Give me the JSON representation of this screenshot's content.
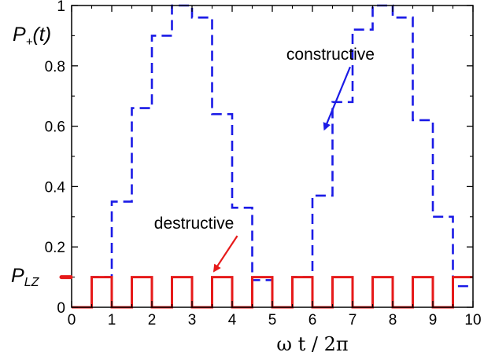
{
  "chart_data": {
    "type": "line",
    "xlabel": "ω t / 2π",
    "ylabel": {
      "main": "P",
      "sub": "+",
      "rest": "(t)"
    },
    "xlim": [
      0,
      10
    ],
    "ylim": [
      0,
      1
    ],
    "xticks": [
      "0",
      "1",
      "2",
      "3",
      "4",
      "5",
      "6",
      "7",
      "8",
      "9",
      "10"
    ],
    "yticks": [
      "0",
      "0.2",
      "0.4",
      "0.6",
      "0.8",
      "1"
    ],
    "plz_marker": {
      "main": "P",
      "sub": "LZ",
      "value": 0.1
    },
    "series": [
      {
        "name": "constructive",
        "style": "dashed",
        "color": "#1a1ae6",
        "x": [
          0,
          0.5,
          0.5,
          1,
          1,
          1.5,
          1.5,
          2,
          2,
          2.5,
          2.5,
          3,
          3,
          3.5,
          3.5,
          4,
          4,
          4.5,
          4.5,
          5,
          5,
          5.5,
          5.5,
          6,
          6,
          6.5,
          6.5,
          7,
          7,
          7.5,
          7.5,
          8,
          8,
          8.5,
          8.5,
          9,
          9,
          9.5,
          9.5,
          10
        ],
        "y": [
          0,
          0,
          0.1,
          0.1,
          0.35,
          0.35,
          0.66,
          0.66,
          0.9,
          0.9,
          1.0,
          1.0,
          0.96,
          0.96,
          0.64,
          0.64,
          0.33,
          0.33,
          0.09,
          0.09,
          0,
          0,
          0.1,
          0.1,
          0.37,
          0.37,
          0.68,
          0.68,
          0.92,
          0.92,
          1.0,
          1.0,
          0.96,
          0.96,
          0.62,
          0.62,
          0.3,
          0.3,
          0.07,
          0.07
        ]
      },
      {
        "name": "destructive",
        "style": "solid",
        "color": "#e61a1a",
        "x": [
          0,
          0.5,
          0.5,
          1,
          1,
          1.5,
          1.5,
          2,
          2,
          2.5,
          2.5,
          3,
          3,
          3.5,
          3.5,
          4,
          4,
          4.5,
          4.5,
          5,
          5,
          5.5,
          5.5,
          6,
          6,
          6.5,
          6.5,
          7,
          7,
          7.5,
          7.5,
          8,
          8,
          8.5,
          8.5,
          9,
          9,
          9.5,
          9.5,
          10
        ],
        "y": [
          0,
          0,
          0.1,
          0.1,
          0,
          0,
          0.1,
          0.1,
          0,
          0,
          0.1,
          0.1,
          0,
          0,
          0.1,
          0.1,
          0,
          0,
          0.1,
          0.1,
          0,
          0,
          0.1,
          0.1,
          0,
          0,
          0.1,
          0.1,
          0,
          0,
          0.1,
          0.1,
          0,
          0,
          0.1,
          0.1,
          0,
          0,
          0.1,
          0.1
        ]
      }
    ],
    "annotations": [
      {
        "text": "constructive",
        "color": "#1a1ae6",
        "text_pos": [
          6.45,
          0.82
        ],
        "arrow_to": [
          6.3,
          0.59
        ]
      },
      {
        "text": "destructive",
        "color": "#e61a1a",
        "text_pos": [
          3.05,
          0.26
        ],
        "arrow_to": [
          3.55,
          0.12
        ]
      }
    ]
  }
}
